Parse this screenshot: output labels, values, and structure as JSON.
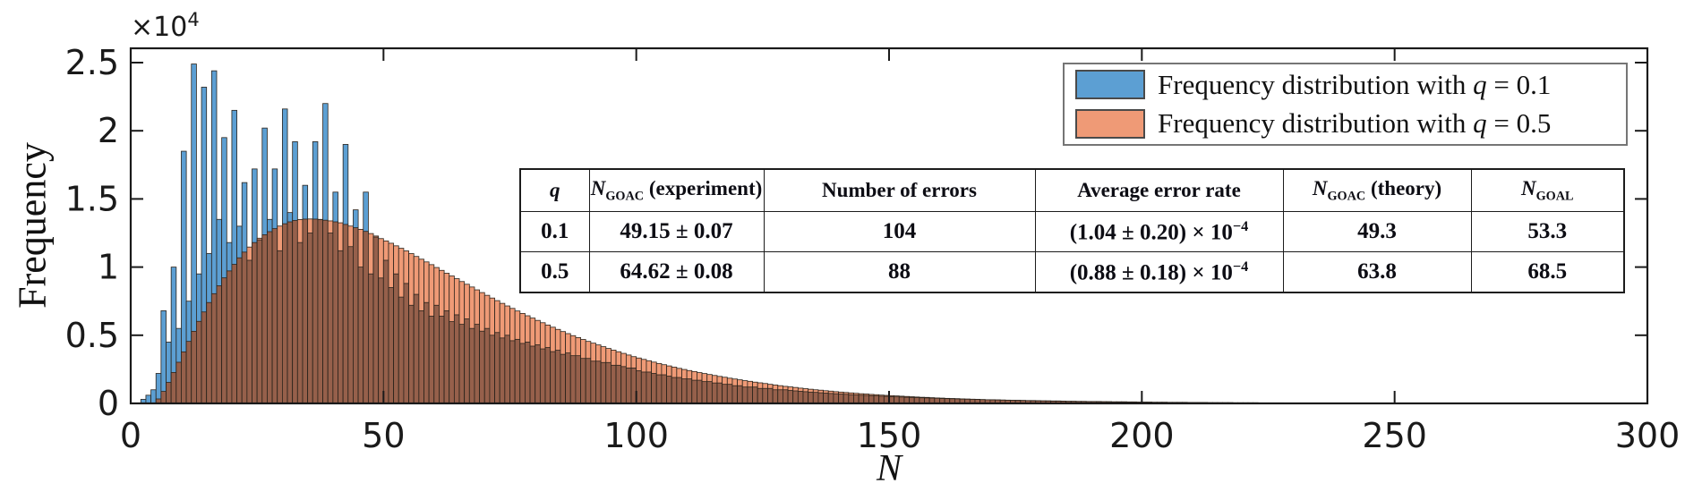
{
  "axes": {
    "ylabel": "Frequency",
    "xlabel": "N",
    "y_offset_label": "×10",
    "y_offset_exp": "4",
    "x_ticks": [
      0,
      50,
      100,
      150,
      200,
      250,
      300
    ],
    "y_ticks": [
      0,
      0.5,
      1,
      1.5,
      2,
      2.5
    ],
    "xlim": [
      0,
      300
    ],
    "ylim": [
      0,
      2.605
    ]
  },
  "legend": {
    "items": [
      {
        "label": "Frequency distribution with q = 0.1",
        "prefix": "Frequency distribution with ",
        "q_symbol": "q",
        "suffix": " = 0.1",
        "color": "#5C9FD3"
      },
      {
        "label": "Frequency distribution with q = 0.5",
        "prefix": "Frequency distribution with ",
        "q_symbol": "q",
        "suffix": " = 0.5",
        "color": "#EF9A76"
      }
    ]
  },
  "table": {
    "columns": [
      {
        "runs": [
          {
            "t": "q",
            "style": "italic"
          }
        ]
      },
      {
        "runs": [
          {
            "t": "N",
            "style": "italic"
          },
          {
            "t": "GOAC",
            "style": "sub"
          },
          {
            "t": " (experiment)"
          }
        ]
      },
      {
        "runs": [
          {
            "t": "Number of errors"
          }
        ]
      },
      {
        "runs": [
          {
            "t": "Average error rate"
          }
        ]
      },
      {
        "runs": [
          {
            "t": "N",
            "style": "italic"
          },
          {
            "t": "GOAC",
            "style": "sub"
          },
          {
            "t": " (theory)"
          }
        ]
      },
      {
        "runs": [
          {
            "t": "N",
            "style": "italic"
          },
          {
            "t": "GOAL",
            "style": "sub"
          }
        ]
      }
    ],
    "rows": [
      [
        [
          {
            "t": "0.1"
          }
        ],
        [
          {
            "t": "49.15 ± 0.07"
          }
        ],
        [
          {
            "t": "104"
          }
        ],
        [
          {
            "t": "(1.04 ± 0.20) × 10"
          },
          {
            "t": "−4",
            "style": "sup"
          }
        ],
        [
          {
            "t": "49.3"
          }
        ],
        [
          {
            "t": "53.3"
          }
        ]
      ],
      [
        [
          {
            "t": "0.5"
          }
        ],
        [
          {
            "t": "64.62 ± 0.08"
          }
        ],
        [
          {
            "t": "88"
          }
        ],
        [
          {
            "t": "(0.88 ± 0.18) × 10"
          },
          {
            "t": "−4",
            "style": "sup"
          }
        ],
        [
          {
            "t": "63.8"
          }
        ],
        [
          {
            "t": "68.5"
          }
        ]
      ]
    ]
  },
  "chart_data": {
    "type": "bar",
    "subtype": "overlaid-histogram",
    "title": "",
    "xlabel": "N",
    "ylabel": "Frequency",
    "y_scale_factor": 10000,
    "bin_width": 1,
    "x_start": 1,
    "xlim": [
      0,
      300
    ],
    "ylim": [
      0,
      2.605
    ],
    "grid": false,
    "legend_position": "top-right",
    "overlap_color": "#96604B",
    "edge_color": "#2C241C",
    "series": [
      {
        "name": "Frequency distribution with q = 0.1",
        "color": "#5C9FD3",
        "values": [
          0,
          0,
          0.03,
          0.06,
          0.1,
          0.22,
          0.68,
          0.45,
          1.0,
          0.55,
          1.85,
          0.75,
          2.49,
          0.95,
          2.32,
          1.1,
          2.44,
          1.35,
          1.95,
          1.18,
          2.15,
          1.3,
          1.62,
          1.05,
          1.72,
          1.2,
          2.02,
          1.35,
          1.72,
          1.12,
          2.16,
          1.4,
          1.92,
          1.18,
          1.6,
          1.25,
          1.92,
          1.35,
          2.2,
          1.25,
          1.55,
          1.12,
          1.9,
          1.15,
          1.42,
          1.0,
          1.55,
          0.95,
          1.22,
          0.92,
          1.05,
          0.85,
          0.95,
          0.78,
          0.88,
          0.72,
          0.8,
          0.68,
          0.74,
          0.64,
          0.72,
          0.64,
          0.68,
          0.6,
          0.65,
          0.58,
          0.62,
          0.55,
          0.58,
          0.53,
          0.55,
          0.5,
          0.52,
          0.48,
          0.5,
          0.46,
          0.47,
          0.44,
          0.45,
          0.42,
          0.43,
          0.4,
          0.41,
          0.38,
          0.39,
          0.36,
          0.37,
          0.35,
          0.35,
          0.33,
          0.33,
          0.31,
          0.31,
          0.3,
          0.3,
          0.28,
          0.28,
          0.27,
          0.26,
          0.26,
          0.24,
          0.23,
          0.23,
          0.22,
          0.21,
          0.21,
          0.2,
          0.19,
          0.19,
          0.18,
          0.18,
          0.17,
          0.17,
          0.16,
          0.16,
          0.15,
          0.15,
          0.14,
          0.14,
          0.13,
          0.13,
          0.12,
          0.12,
          0.12,
          0.11,
          0.11,
          0.11,
          0.1,
          0.1,
          0.1,
          0.095,
          0.092,
          0.089,
          0.086,
          0.083,
          0.081,
          0.078,
          0.076,
          0.073,
          0.071,
          0.069,
          0.067,
          0.064,
          0.062,
          0.06,
          0.059,
          0.057,
          0.055,
          0.053,
          0.052,
          0.05,
          0.048,
          0.047,
          0.045,
          0.044,
          0.043,
          0.041,
          0.04,
          0.039,
          0.038,
          0.036,
          0.035,
          0.034,
          0.033,
          0.032,
          0.031,
          0.03,
          0.029,
          0.028,
          0.027,
          0.027,
          0.026,
          0.025,
          0.024,
          0.023,
          0.023,
          0.022,
          0.021,
          0.021,
          0.02,
          0.019,
          0.019,
          0.018,
          0.018,
          0.017,
          0.016,
          0.016,
          0.015,
          0.015,
          0.014,
          0.014,
          0.014,
          0.013,
          0.013,
          0.012,
          0.012,
          0.012,
          0.011,
          0.011,
          0.01,
          0.01,
          0.01,
          0.009,
          0.009,
          0.009,
          0.008,
          0.008,
          0.008,
          0.008,
          0.007,
          0.007,
          0.007,
          0.007,
          0.006,
          0.006,
          0.006,
          0.006,
          0.006,
          0.005,
          0.005,
          0.005,
          0.005,
          0.005,
          0.004,
          0.004,
          0.004,
          0.004,
          0.004,
          0.003,
          0.003,
          0.003,
          0.003,
          0.003,
          0.003,
          0.003,
          0.003,
          0.003,
          0.002,
          0.002,
          0.002,
          0.002,
          0.002,
          0.002,
          0.002,
          0.002,
          0.002,
          0.002,
          0.001,
          0.001,
          0.001,
          0.001,
          0.001,
          0.001,
          0.001,
          0.001,
          0.001,
          0.001,
          0.001,
          0.001,
          0.001,
          0.001,
          0.001,
          0.001,
          0,
          0,
          0,
          0,
          0,
          0,
          0,
          0,
          0,
          0,
          0,
          0,
          0,
          0,
          0,
          0,
          0,
          0,
          0,
          0,
          0,
          0,
          0,
          0,
          0,
          0,
          0,
          0,
          0,
          0,
          0,
          0,
          0,
          0,
          0,
          0,
          0
        ]
      },
      {
        "name": "Frequency distribution with q = 0.5",
        "color": "#EF9A76",
        "values": [
          0,
          0,
          0,
          0,
          0,
          0.033,
          0.088,
          0.154,
          0.227,
          0.302,
          0.378,
          0.455,
          0.529,
          0.602,
          0.671,
          0.74,
          0.805,
          0.863,
          0.921,
          0.972,
          1.02,
          1.068,
          1.11,
          1.147,
          1.18,
          1.212,
          1.237,
          1.26,
          1.282,
          1.301,
          1.318,
          1.332,
          1.342,
          1.349,
          1.352,
          1.353,
          1.352,
          1.349,
          1.344,
          1.339,
          1.332,
          1.325,
          1.313,
          1.301,
          1.289,
          1.277,
          1.262,
          1.246,
          1.228,
          1.209,
          1.192,
          1.175,
          1.156,
          1.138,
          1.119,
          1.099,
          1.078,
          1.058,
          1.038,
          1.018,
          0.997,
          0.976,
          0.955,
          0.935,
          0.915,
          0.894,
          0.874,
          0.854,
          0.833,
          0.813,
          0.793,
          0.773,
          0.754,
          0.734,
          0.715,
          0.697,
          0.678,
          0.66,
          0.643,
          0.626,
          0.609,
          0.592,
          0.575,
          0.559,
          0.543,
          0.527,
          0.512,
          0.497,
          0.483,
          0.469,
          0.455,
          0.442,
          0.429,
          0.416,
          0.403,
          0.391,
          0.379,
          0.367,
          0.355,
          0.343,
          0.333,
          0.323,
          0.313,
          0.303,
          0.293,
          0.284,
          0.275,
          0.266,
          0.257,
          0.249,
          0.241,
          0.234,
          0.226,
          0.219,
          0.212,
          0.205,
          0.198,
          0.192,
          0.185,
          0.179,
          0.173,
          0.167,
          0.162,
          0.156,
          0.151,
          0.146,
          0.14,
          0.135,
          0.13,
          0.125,
          0.121,
          0.117,
          0.112,
          0.108,
          0.104,
          0.1,
          0.097,
          0.093,
          0.09,
          0.086,
          0.083,
          0.08,
          0.077,
          0.074,
          0.071,
          0.069,
          0.066,
          0.064,
          0.061,
          0.059,
          0.057,
          0.055,
          0.053,
          0.051,
          0.049,
          0.047,
          0.045,
          0.044,
          0.042,
          0.04,
          0.039,
          0.037,
          0.036,
          0.035,
          0.033,
          0.032,
          0.031,
          0.03,
          0.028,
          0.027,
          0.026,
          0.025,
          0.024,
          0.023,
          0.022,
          0.021,
          0.021,
          0.02,
          0.019,
          0.018,
          0.018,
          0.017,
          0.016,
          0.016,
          0.015,
          0.014,
          0.014,
          0.013,
          0.013,
          0.012,
          0.012,
          0.011,
          0.011,
          0.01,
          0.01,
          0.009,
          0.009,
          0.009,
          0.008,
          0.008,
          0.0078,
          0.0075,
          0.0072,
          0.0069,
          0.0066,
          0.0063,
          0.0061,
          0.0058,
          0.0056,
          0.0053,
          0.0051,
          0.0049,
          0.0047,
          0.0045,
          0.0043,
          0.0041,
          0.0039,
          0.0038,
          0.0036,
          0.0035,
          0.0033,
          0.0032,
          0.003,
          0.0029,
          0.0028,
          0.0027,
          0.0026,
          0.0025,
          0.0024,
          0.0023,
          0.0022,
          0.0021,
          0.002,
          0.0019,
          0.0019,
          0.0018,
          0.0017,
          0.0016,
          0.0016,
          0.0015,
          0.0014,
          0.0014,
          0.0013,
          0.0013,
          0.0012,
          0.0012,
          0.0011,
          0.0011,
          0.001,
          0.001,
          0.0009,
          0.0009,
          0.0009,
          0.0008,
          0.0008,
          0.0008,
          0.0007,
          0.0007,
          0.0007,
          0.0007,
          0.0006,
          0.0006,
          0.0006,
          0.0005,
          0.0005,
          0.0005,
          0.0005,
          0.0005,
          0.0004,
          0.0004,
          0.0004,
          0.0004,
          0.0004,
          0.0003,
          0.0003,
          0.0003,
          0.0003,
          0.0003,
          0.0002,
          0.0002,
          0.0002,
          0.0002,
          0.0002,
          0.0002,
          0.0002,
          0.0001,
          0.0001,
          0.0001,
          0.0001,
          0.0001,
          0.0001,
          0.0001,
          0.0001,
          0.0001,
          0.0001,
          0,
          0,
          0,
          0,
          0
        ]
      }
    ]
  }
}
